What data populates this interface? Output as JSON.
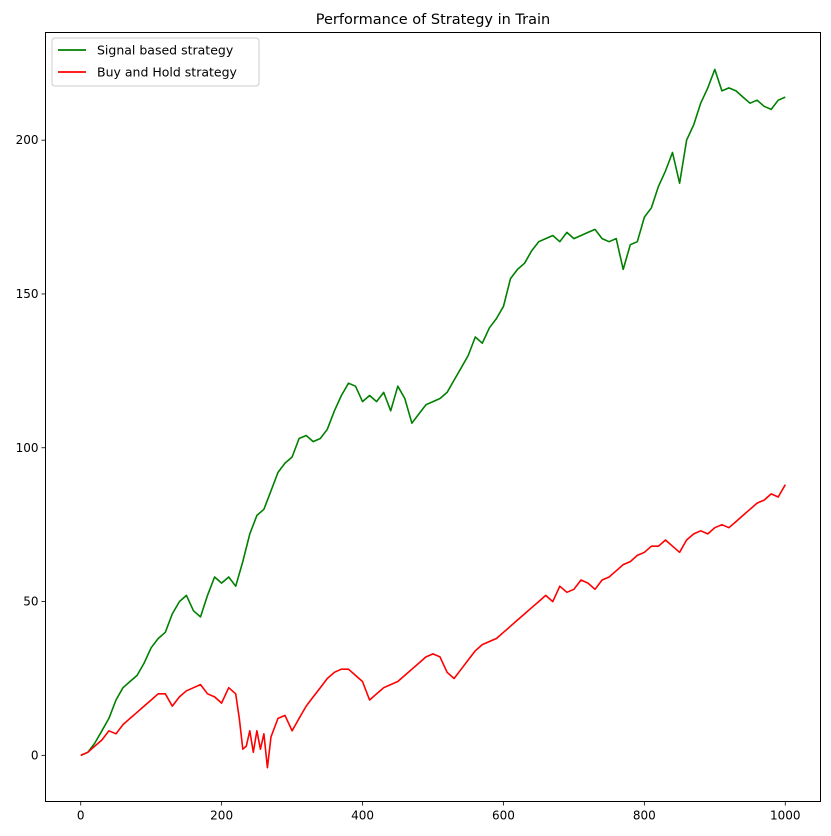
{
  "chart_data": {
    "type": "line",
    "title": "Performance of Strategy in Train",
    "xlabel": "",
    "ylabel": "",
    "xlim": [
      -50,
      1050
    ],
    "ylim": [
      -15,
      235
    ],
    "xticks": [
      0,
      200,
      400,
      600,
      800,
      1000
    ],
    "yticks": [
      0,
      50,
      100,
      150,
      200
    ],
    "grid": false,
    "legend_position": "top-left",
    "series": [
      {
        "name": "Signal based strategy",
        "color": "#008000",
        "x": [
          0,
          10,
          20,
          30,
          40,
          50,
          60,
          70,
          80,
          90,
          100,
          110,
          120,
          130,
          140,
          150,
          160,
          170,
          180,
          190,
          200,
          210,
          220,
          230,
          240,
          250,
          260,
          270,
          280,
          290,
          300,
          310,
          320,
          330,
          340,
          350,
          360,
          370,
          380,
          390,
          400,
          410,
          420,
          430,
          440,
          450,
          460,
          470,
          480,
          490,
          500,
          510,
          520,
          530,
          540,
          550,
          560,
          570,
          580,
          590,
          600,
          610,
          620,
          630,
          640,
          650,
          660,
          670,
          680,
          690,
          700,
          710,
          720,
          730,
          740,
          750,
          760,
          770,
          780,
          790,
          800,
          810,
          820,
          830,
          840,
          850,
          860,
          870,
          880,
          890,
          900,
          910,
          920,
          930,
          940,
          950,
          960,
          970,
          980,
          990,
          1000
        ],
        "values": [
          0,
          1,
          4,
          8,
          12,
          18,
          22,
          24,
          26,
          30,
          35,
          38,
          40,
          46,
          50,
          52,
          47,
          45,
          52,
          58,
          56,
          58,
          55,
          63,
          72,
          78,
          80,
          86,
          92,
          95,
          97,
          103,
          104,
          102,
          103,
          106,
          112,
          117,
          121,
          120,
          115,
          117,
          115,
          118,
          112,
          120,
          116,
          108,
          111,
          114,
          115,
          116,
          118,
          122,
          126,
          130,
          136,
          134,
          139,
          142,
          146,
          155,
          158,
          160,
          164,
          167,
          168,
          169,
          167,
          170,
          168,
          169,
          170,
          171,
          168,
          167,
          168,
          158,
          166,
          167,
          175,
          178,
          185,
          190,
          196,
          186,
          200,
          205,
          212,
          217,
          223,
          216,
          217,
          216,
          214,
          212,
          213,
          211,
          210,
          213,
          214
        ]
      },
      {
        "name": "Buy and Hold strategy",
        "color": "#ff0000",
        "x": [
          0,
          10,
          20,
          30,
          40,
          50,
          60,
          70,
          80,
          90,
          100,
          110,
          120,
          130,
          140,
          150,
          160,
          170,
          180,
          190,
          200,
          210,
          220,
          225,
          230,
          235,
          240,
          245,
          250,
          255,
          260,
          265,
          270,
          280,
          290,
          300,
          310,
          320,
          330,
          340,
          350,
          360,
          370,
          380,
          390,
          400,
          410,
          420,
          430,
          440,
          450,
          460,
          470,
          480,
          490,
          500,
          510,
          520,
          530,
          540,
          550,
          560,
          570,
          580,
          590,
          600,
          610,
          620,
          630,
          640,
          650,
          660,
          670,
          680,
          690,
          700,
          710,
          720,
          730,
          740,
          750,
          760,
          770,
          780,
          790,
          800,
          810,
          820,
          830,
          840,
          850,
          860,
          870,
          880,
          890,
          900,
          910,
          920,
          930,
          940,
          950,
          960,
          970,
          980,
          990,
          1000
        ],
        "values": [
          0,
          1,
          3,
          5,
          8,
          7,
          10,
          12,
          14,
          16,
          18,
          20,
          20,
          16,
          19,
          21,
          22,
          23,
          20,
          19,
          17,
          22,
          20,
          12,
          2,
          3,
          8,
          1,
          8,
          2,
          7,
          -4,
          6,
          12,
          13,
          8,
          12,
          16,
          19,
          22,
          25,
          27,
          28,
          28,
          26,
          24,
          18,
          20,
          22,
          23,
          24,
          26,
          28,
          30,
          32,
          33,
          32,
          27,
          25,
          28,
          31,
          34,
          36,
          37,
          38,
          40,
          42,
          44,
          46,
          48,
          50,
          52,
          50,
          55,
          53,
          54,
          57,
          56,
          54,
          57,
          58,
          60,
          62,
          63,
          65,
          66,
          68,
          68,
          70,
          68,
          66,
          70,
          72,
          73,
          72,
          74,
          75,
          74,
          76,
          78,
          80,
          82,
          83,
          85,
          84,
          88
        ]
      }
    ]
  }
}
